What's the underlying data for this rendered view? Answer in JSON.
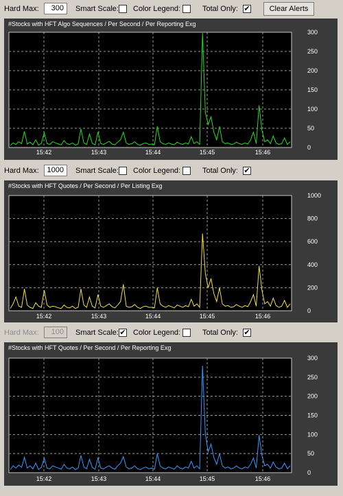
{
  "sections": [
    {
      "controls": {
        "hard_max_label": "Hard Max:",
        "hard_max_value": "300",
        "hard_max_enabled": true,
        "smart_scale_label": "Smart Scale:",
        "smart_scale_checked": false,
        "color_legend_label": "Color Legend:",
        "color_legend_checked": false,
        "total_only_label": "Total Only:",
        "total_only_checked": true,
        "clear_alerts_label": "Clear Alerts"
      },
      "chart_data": {
        "type": "line",
        "title": "#Stocks with HFT Algo Sequences / Per Second / Per Reporting Exg",
        "color": "#22dd22",
        "ylim": [
          0,
          300
        ],
        "yticks": [
          "0",
          "50",
          "100",
          "150",
          "200",
          "250",
          "300"
        ],
        "xticks": [
          "15:42",
          "15:43",
          "15:44",
          "15:45",
          "15:46"
        ],
        "series": [
          {
            "values": [
              5,
              12,
              8,
              15,
              10,
              42,
              9,
              14,
              7,
              20,
              6,
              11,
              38,
              10,
              8,
              15,
              12,
              9,
              7,
              18,
              10,
              8,
              12,
              6,
              9,
              48,
              12,
              8,
              35,
              11,
              7,
              40,
              10,
              8,
              12,
              16,
              9,
              7,
              14,
              20,
              40,
              12,
              8,
              10,
              15,
              8,
              6,
              10,
              12,
              8,
              9,
              7,
              55,
              15,
              10,
              8,
              12,
              9,
              7,
              14,
              10,
              8,
              12,
              9,
              28,
              10,
              15,
              8,
              300,
              90,
              60,
              80,
              40,
              20,
              55,
              15,
              10,
              12,
              8,
              9,
              14,
              10,
              8,
              12,
              9,
              20,
              40,
              10,
              110,
              45,
              15,
              20,
              10,
              30,
              12,
              8,
              10,
              25,
              8,
              15
            ]
          }
        ]
      }
    },
    {
      "controls": {
        "hard_max_label": "Hard Max:",
        "hard_max_value": "1000",
        "hard_max_enabled": true,
        "smart_scale_label": "Smart Scale:",
        "smart_scale_checked": false,
        "color_legend_label": "Color Legend:",
        "color_legend_checked": false,
        "total_only_label": "Total Only:",
        "total_only_checked": true
      },
      "chart_data": {
        "type": "line",
        "title": "#Stocks with HFT Quotes / Per Second / Per Listing Exg",
        "color": "#f0e040",
        "ylim": [
          0,
          1000
        ],
        "yticks": [
          "0",
          "200",
          "400",
          "600",
          "800",
          "1000"
        ],
        "xticks": [
          "15:42",
          "15:43",
          "15:44",
          "15:45",
          "15:46"
        ],
        "series": [
          {
            "values": [
              20,
              60,
              120,
              40,
              30,
              190,
              50,
              30,
              20,
              70,
              40,
              30,
              180,
              50,
              30,
              40,
              35,
              25,
              20,
              50,
              30,
              25,
              40,
              20,
              30,
              190,
              50,
              30,
              120,
              40,
              25,
              140,
              40,
              30,
              45,
              60,
              35,
              25,
              50,
              80,
              230,
              40,
              30,
              35,
              55,
              30,
              20,
              35,
              40,
              30,
              30,
              25,
              200,
              60,
              40,
              30,
              45,
              35,
              25,
              50,
              40,
              30,
              45,
              35,
              100,
              40,
              60,
              30,
              670,
              320,
              200,
              280,
              150,
              80,
              200,
              60,
              40,
              45,
              30,
              35,
              55,
              40,
              30,
              45,
              35,
              80,
              140,
              40,
              390,
              180,
              60,
              80,
              40,
              110,
              45,
              30,
              40,
              90,
              30,
              60
            ]
          }
        ]
      }
    },
    {
      "controls": {
        "hard_max_label": "Hard Max:",
        "hard_max_value": "100",
        "hard_max_enabled": false,
        "smart_scale_label": "Smart Scale:",
        "smart_scale_checked": true,
        "color_legend_label": "Color Legend:",
        "color_legend_checked": false,
        "total_only_label": "Total Only:",
        "total_only_checked": true
      },
      "chart_data": {
        "type": "line",
        "title": "#Stocks with HFT Quotes / Per Second / Per Reporting Exg",
        "color": "#3399ff",
        "ylim": [
          0,
          300
        ],
        "yticks": [
          "0",
          "50",
          "100",
          "150",
          "200",
          "250",
          "300"
        ],
        "xticks": [
          "15:42",
          "15:43",
          "15:44",
          "15:45",
          "15:46"
        ],
        "series": [
          {
            "values": [
              8,
              18,
              12,
              20,
              14,
              40,
              12,
              18,
              10,
              25,
              8,
              14,
              38,
              12,
              10,
              18,
              15,
              12,
              9,
              22,
              12,
              10,
              15,
              8,
              12,
              45,
              15,
              10,
              35,
              14,
              9,
              38,
              12,
              10,
              15,
              18,
              12,
              9,
              18,
              25,
              42,
              15,
              10,
              12,
              18,
              10,
              8,
              12,
              15,
              10,
              12,
              9,
              50,
              18,
              12,
              10,
              15,
              12,
              9,
              18,
              12,
              10,
              15,
              12,
              30,
              12,
              18,
              10,
              280,
              100,
              55,
              75,
              40,
              22,
              50,
              18,
              12,
              15,
              10,
              12,
              18,
              12,
              10,
              15,
              12,
              22,
              38,
              12,
              98,
              45,
              18,
              22,
              12,
              28,
              15,
              10,
              12,
              25,
              10,
              18
            ]
          }
        ]
      }
    }
  ]
}
